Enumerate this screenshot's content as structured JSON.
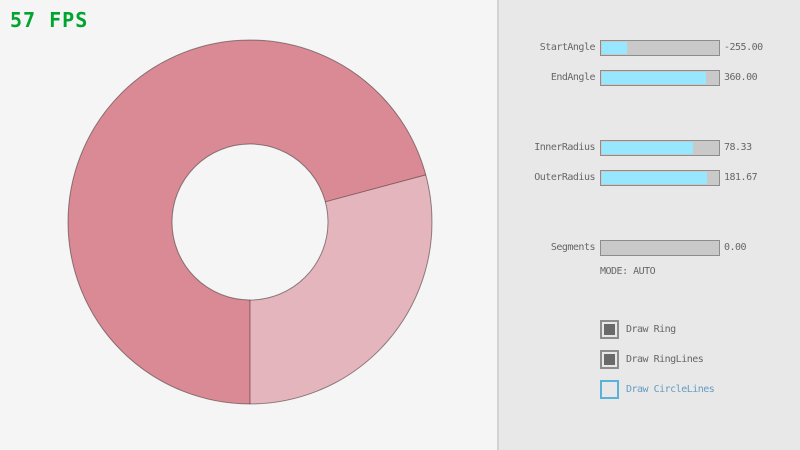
{
  "fps": {
    "text": "57 FPS"
  },
  "panel": {
    "sliders": [
      {
        "label": "StartAngle",
        "value": "-255.00",
        "fill_pct": 21.7
      },
      {
        "label": "EndAngle",
        "value": "360.00",
        "fill_pct": 90.0
      },
      {
        "label": "InnerRadius",
        "value": "78.33",
        "fill_pct": 78.3
      },
      {
        "label": "OuterRadius",
        "value": "181.67",
        "fill_pct": 90.8
      },
      {
        "label": "Segments",
        "value": "0.00",
        "fill_pct": 0
      }
    ],
    "mode_text": "MODE: AUTO",
    "checkboxes": [
      {
        "label": "Draw Ring",
        "checked": true,
        "focused": false
      },
      {
        "label": "Draw RingLines",
        "checked": true,
        "focused": false
      },
      {
        "label": "Draw CircleLines",
        "checked": false,
        "focused": true
      }
    ]
  },
  "ring": {
    "start_angle": -255.0,
    "end_angle": 360.0,
    "inner_radius": 78.33,
    "outer_radius": 181.67,
    "segments": 0
  },
  "colors": {
    "bg": "#f5f5f5",
    "panel_bg": "#e8e8e8",
    "divider": "#d2d2d2",
    "ctl_border": "#8d8d8d",
    "track": "#c9c9c9",
    "fill_cyan": "#97e8ff",
    "text": "#676767",
    "fps_green": "#00a52f",
    "focus_blue": "#5bb2d9",
    "focus_text": "#649cc3",
    "check_fill": "#6a6a6a",
    "ring_dark": "#d98a94",
    "ring_light": "#e4b5bc",
    "ring_line": "rgba(0,0,0,0.4)"
  }
}
